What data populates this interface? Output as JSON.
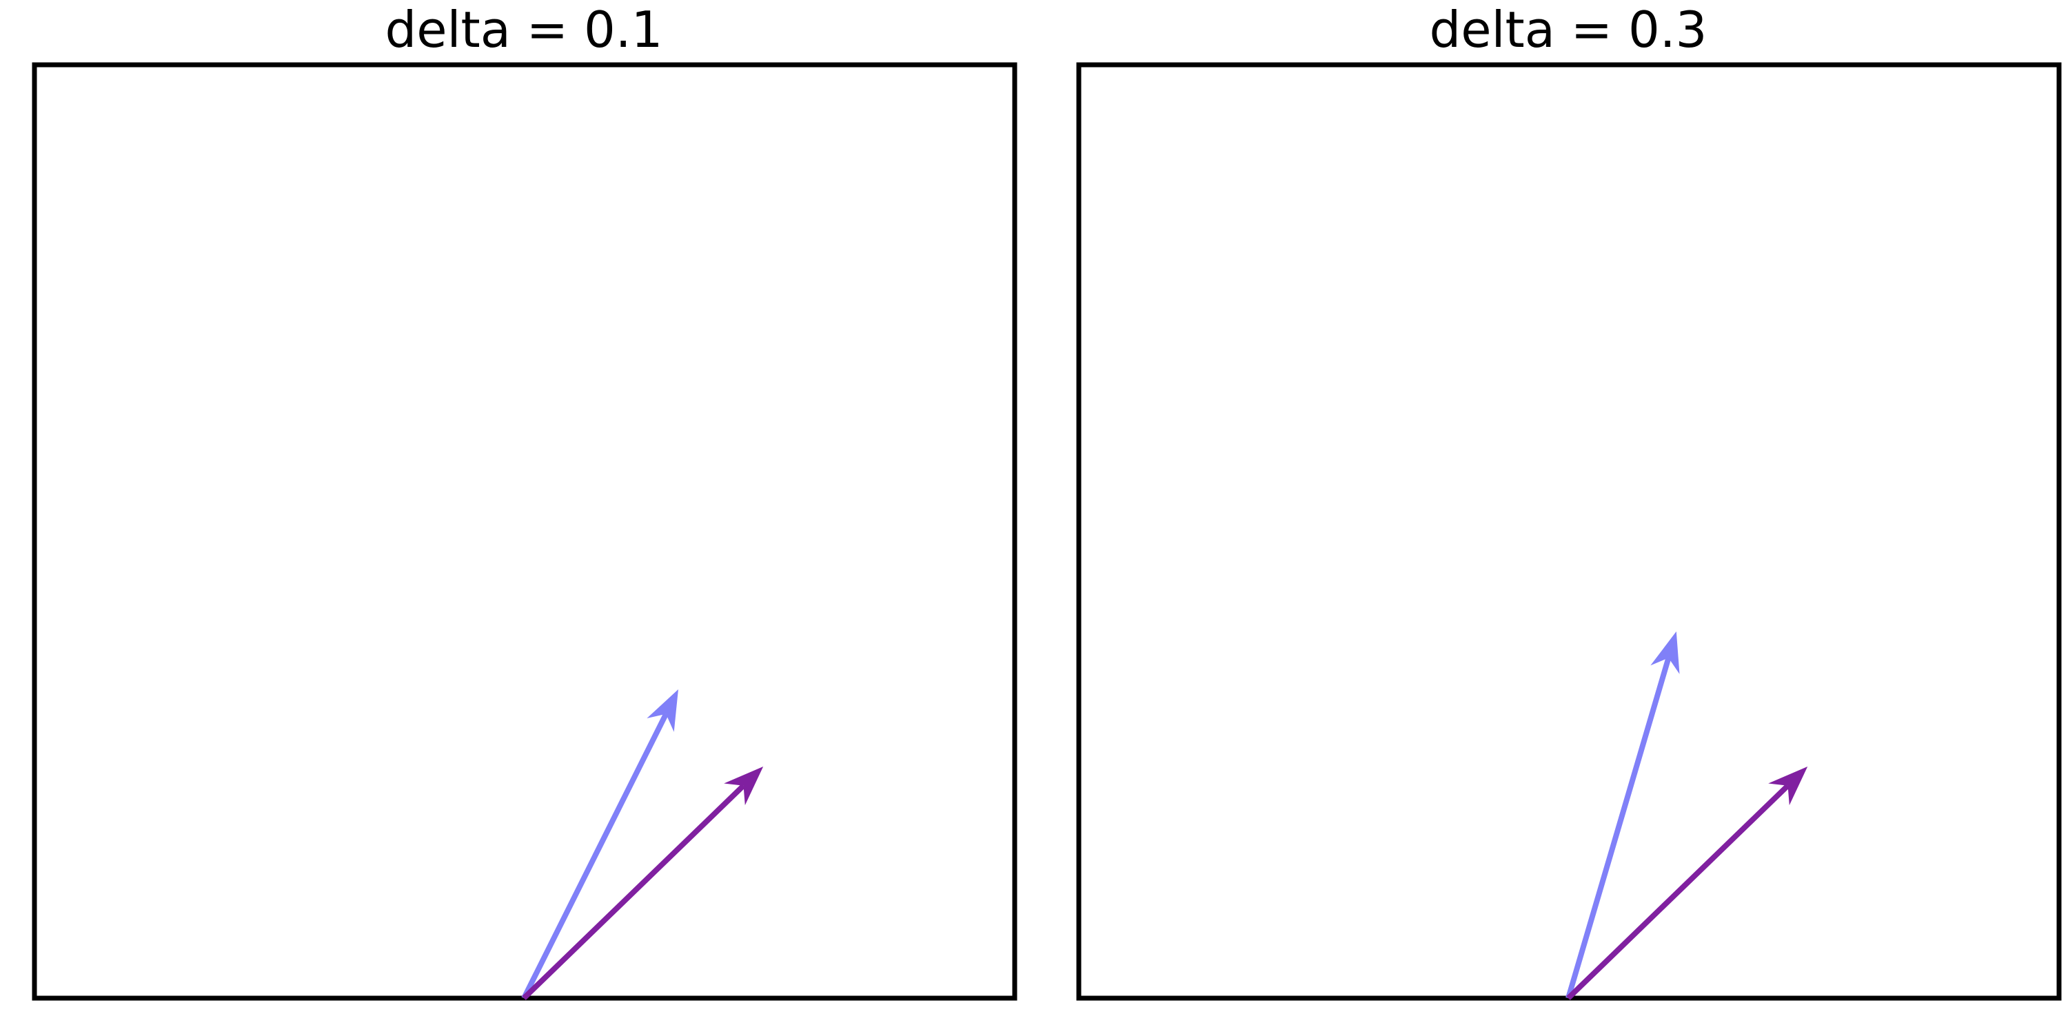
{
  "panels": [
    {
      "title": "delta = 0.1",
      "arrows": [
        {
          "name": "light-arrow",
          "color": "#8080f8",
          "dx": 0.4,
          "dy": 0.8
        },
        {
          "name": "dark-arrow",
          "color": "#8020a0",
          "dx": 0.62,
          "dy": 0.6
        }
      ]
    },
    {
      "title": "delta = 0.3",
      "arrows": [
        {
          "name": "light-arrow",
          "color": "#8080f8",
          "dx": 0.28,
          "dy": 0.95
        },
        {
          "name": "dark-arrow",
          "color": "#8020a0",
          "dx": 0.62,
          "dy": 0.6
        }
      ]
    }
  ]
}
